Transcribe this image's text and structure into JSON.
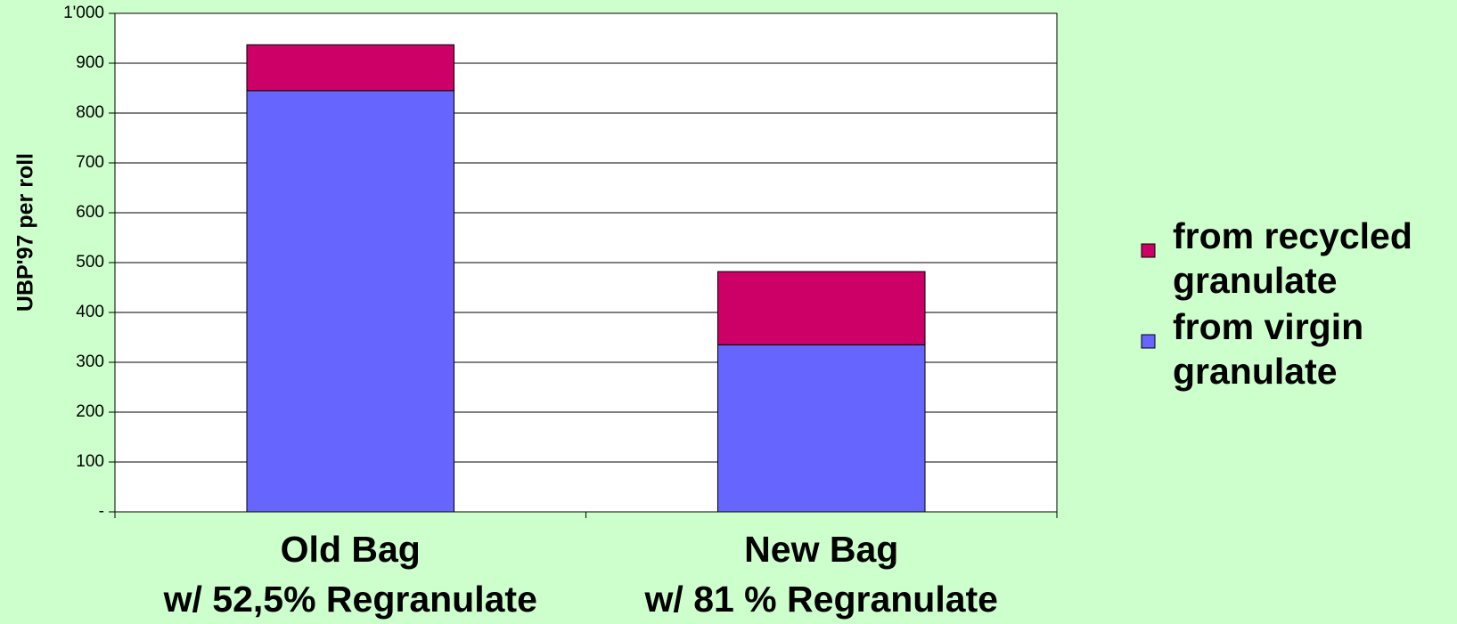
{
  "chart_data": {
    "type": "stacked_bar",
    "y_label": "UBP'97 per roll",
    "categories": [
      "Old Bag\nw/ 52,5% Regranulate",
      "New Bag\nw/ 81 % Regranulate"
    ],
    "series": [
      {
        "name": "from virgin granulate",
        "color": "#6666ff",
        "values": [
          845,
          335
        ]
      },
      {
        "name": "from recycled granulate",
        "color": "#cc0066",
        "values": [
          92,
          147
        ]
      }
    ],
    "ylim": [
      0,
      1000
    ],
    "yticks": [
      {
        "value": 0,
        "label": "-"
      },
      100,
      200,
      300,
      400,
      500,
      600,
      700,
      800,
      900,
      {
        "value": 1000,
        "label": "1'000"
      }
    ],
    "grid": true,
    "legend": "right"
  }
}
